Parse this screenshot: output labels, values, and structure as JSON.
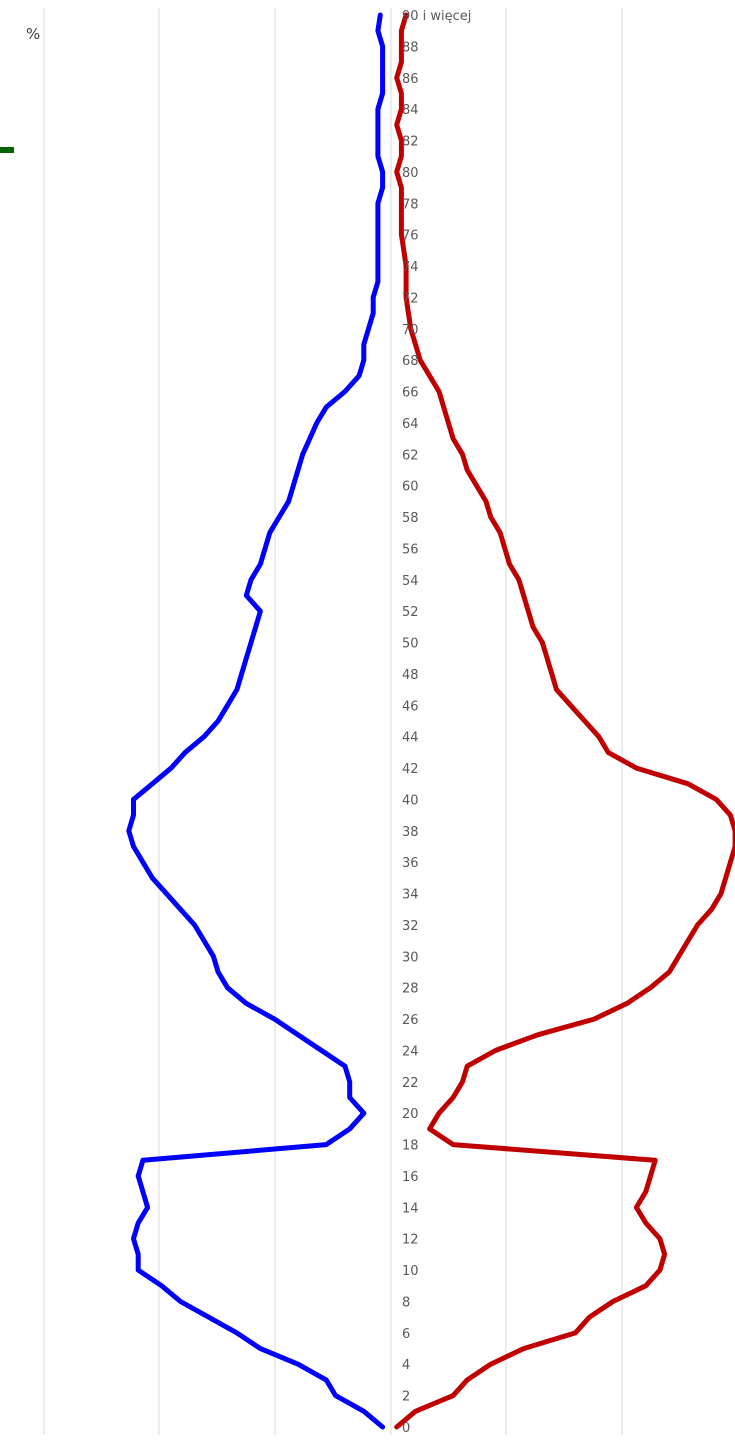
{
  "chart_data": {
    "type": "line",
    "title": "",
    "unit_label": "%",
    "y_label_top": "90 i więcej",
    "ylim": [
      0,
      90
    ],
    "tick_labels": [
      "0",
      "2",
      "4",
      "6",
      "8",
      "10",
      "12",
      "14",
      "16",
      "18",
      "20",
      "22",
      "24",
      "26",
      "28",
      "30",
      "32",
      "34",
      "36",
      "38",
      "40",
      "42",
      "44",
      "46",
      "48",
      "50",
      "52",
      "54",
      "56",
      "58",
      "60",
      "62",
      "64",
      "66",
      "68",
      "70",
      "72",
      "74",
      "76",
      "78",
      "80",
      "82",
      "84",
      "86",
      "88",
      "90 i więcej"
    ],
    "x_gridlines": 6,
    "series": [
      {
        "color": "#0000ff",
        "side": "left",
        "ages": [
          0,
          1,
          2,
          3,
          4,
          5,
          6,
          7,
          8,
          9,
          10,
          11,
          12,
          13,
          14,
          15,
          16,
          17,
          18,
          19,
          20,
          21,
          22,
          23,
          24,
          25,
          26,
          27,
          28,
          29,
          30,
          31,
          32,
          33,
          34,
          35,
          36,
          37,
          38,
          39,
          40,
          41,
          42,
          43,
          44,
          45,
          46,
          47,
          48,
          49,
          50,
          51,
          52,
          53,
          54,
          55,
          56,
          57,
          58,
          59,
          60,
          61,
          62,
          63,
          64,
          65,
          66,
          67,
          68,
          69,
          70,
          71,
          72,
          73,
          74,
          75,
          76,
          77,
          78,
          79,
          80,
          81,
          82,
          83,
          84,
          85,
          86,
          87,
          88,
          89,
          90
        ],
        "values": [
          0.04,
          0.12,
          0.24,
          0.28,
          0.4,
          0.56,
          0.66,
          0.78,
          0.9,
          0.98,
          1.08,
          1.08,
          1.1,
          1.08,
          1.04,
          1.06,
          1.08,
          1.06,
          0.28,
          0.18,
          0.12,
          0.18,
          0.18,
          0.2,
          0.3,
          0.4,
          0.5,
          0.62,
          0.7,
          0.74,
          0.76,
          0.8,
          0.84,
          0.9,
          0.96,
          1.02,
          1.06,
          1.1,
          1.12,
          1.1,
          1.1,
          1.02,
          0.94,
          0.88,
          0.8,
          0.74,
          0.7,
          0.66,
          0.64,
          0.62,
          0.6,
          0.58,
          0.56,
          0.62,
          0.6,
          0.56,
          0.54,
          0.52,
          0.48,
          0.44,
          0.42,
          0.4,
          0.38,
          0.35,
          0.32,
          0.28,
          0.2,
          0.14,
          0.12,
          0.12,
          0.1,
          0.08,
          0.08,
          0.06,
          0.06,
          0.06,
          0.06,
          0.06,
          0.06,
          0.04,
          0.04,
          0.06,
          0.06,
          0.06,
          0.06,
          0.04,
          0.04,
          0.04,
          0.04,
          0.06,
          0.05
        ]
      },
      {
        "color": "#c00000",
        "side": "right",
        "ages": [
          0,
          1,
          2,
          3,
          4,
          5,
          6,
          7,
          8,
          9,
          10,
          11,
          12,
          13,
          14,
          15,
          16,
          17,
          18,
          19,
          20,
          21,
          22,
          23,
          24,
          25,
          26,
          27,
          28,
          29,
          30,
          31,
          32,
          33,
          34,
          35,
          36,
          37,
          38,
          39,
          40,
          41,
          42,
          43,
          44,
          45,
          46,
          47,
          48,
          49,
          50,
          51,
          52,
          53,
          54,
          55,
          56,
          57,
          58,
          59,
          60,
          61,
          62,
          63,
          64,
          65,
          66,
          67,
          68,
          69,
          70,
          71,
          72,
          73,
          74,
          75,
          76,
          77,
          78,
          79,
          80,
          81,
          82,
          83,
          84,
          85,
          86,
          87,
          88,
          89,
          90
        ],
        "values": [
          0.02,
          0.1,
          0.26,
          0.32,
          0.42,
          0.56,
          0.78,
          0.84,
          0.94,
          1.08,
          1.14,
          1.16,
          1.14,
          1.08,
          1.04,
          1.08,
          1.1,
          1.12,
          0.26,
          0.16,
          0.2,
          0.26,
          0.3,
          0.32,
          0.44,
          0.62,
          0.86,
          1.0,
          1.1,
          1.18,
          1.22,
          1.26,
          1.3,
          1.36,
          1.4,
          1.42,
          1.44,
          1.46,
          1.46,
          1.44,
          1.38,
          1.26,
          1.04,
          0.92,
          0.88,
          0.82,
          0.76,
          0.7,
          0.68,
          0.66,
          0.64,
          0.6,
          0.58,
          0.56,
          0.54,
          0.5,
          0.48,
          0.46,
          0.42,
          0.4,
          0.36,
          0.32,
          0.3,
          0.26,
          0.24,
          0.22,
          0.2,
          0.16,
          0.12,
          0.1,
          0.08,
          0.07,
          0.06,
          0.06,
          0.06,
          0.05,
          0.04,
          0.04,
          0.04,
          0.04,
          0.02,
          0.04,
          0.04,
          0.02,
          0.04,
          0.04,
          0.02,
          0.04,
          0.04,
          0.04,
          0.06
        ]
      }
    ]
  }
}
